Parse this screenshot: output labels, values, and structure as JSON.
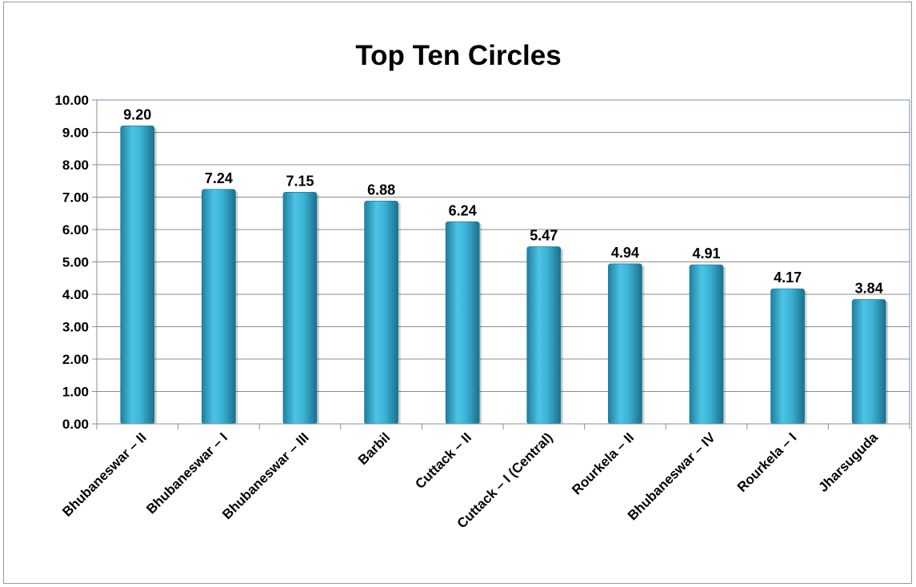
{
  "chart_data": {
    "type": "bar",
    "title": "Top Ten Circles",
    "categories": [
      "Bhubaneswar – II",
      "Bhubaneswar – I",
      "Bhubaneswar – III",
      "Barbil",
      "Cuttack – II",
      "Cuttack – I (Central)",
      "Rourkela – II",
      "Bhubaneswar – IV",
      "Rourkela – I",
      "Jharsuguda"
    ],
    "values": [
      9.2,
      7.24,
      7.15,
      6.88,
      6.24,
      5.47,
      4.94,
      4.91,
      4.17,
      3.84
    ],
    "data_labels": [
      "9.20",
      "7.24",
      "7.15",
      "6.88",
      "6.24",
      "5.47",
      "4.94",
      "4.91",
      "4.17",
      "3.84"
    ],
    "y_ticks": [
      "0.00",
      "1.00",
      "2.00",
      "3.00",
      "4.00",
      "5.00",
      "6.00",
      "7.00",
      "8.00",
      "9.00",
      "10.00"
    ],
    "ylim": [
      0,
      10
    ],
    "grid": true,
    "legend": "none",
    "bar_color": "#3bb3d6",
    "bar_color_dark": "#1f7f9e"
  }
}
